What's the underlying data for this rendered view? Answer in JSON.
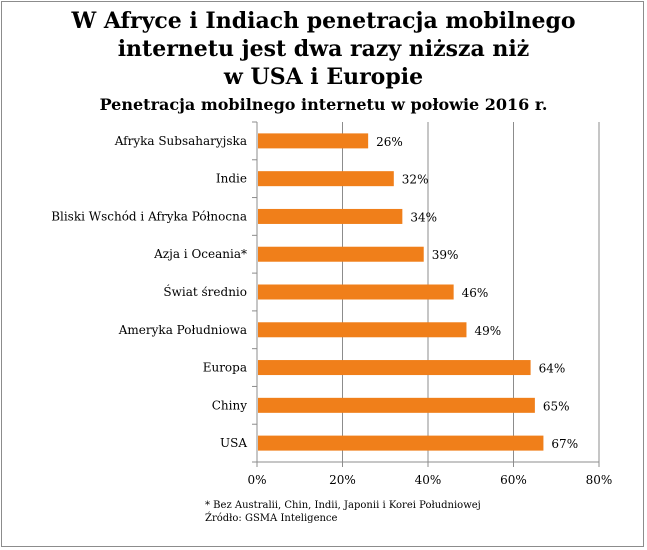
{
  "title_lines": [
    "W Afryce i Indiach penetracja mobilnego",
    "internetu jest dwa razy niższa niż",
    "w USA i Europie"
  ],
  "subtitle": "Penetracja mobilnego internetu w połowie 2016 r.",
  "footnote": "* Bez Australii, Chin, Indii, Japonii i Korei Południowej",
  "source": "Źródło: GSMA Inteligence",
  "chart_data": {
    "type": "bar",
    "orientation": "horizontal",
    "categories": [
      "Afryka Subsaharyjska",
      "Indie",
      "Bliski Wschód i Afryka Północna",
      "Azja i Oceania*",
      "Świat średnio",
      "Ameryka Południowa",
      "Europa",
      "Chiny",
      "USA"
    ],
    "values": [
      26,
      32,
      34,
      39,
      46,
      49,
      64,
      65,
      67
    ],
    "value_labels": [
      "26%",
      "32%",
      "34%",
      "39%",
      "46%",
      "49%",
      "64%",
      "65%",
      "67%"
    ],
    "xlim": [
      0,
      80
    ],
    "xticks": [
      0,
      20,
      40,
      60,
      80
    ],
    "xtick_labels": [
      "0%",
      "20%",
      "40%",
      "60%",
      "80%"
    ],
    "grid": "vertical",
    "bar_color": "#f07f1a"
  }
}
